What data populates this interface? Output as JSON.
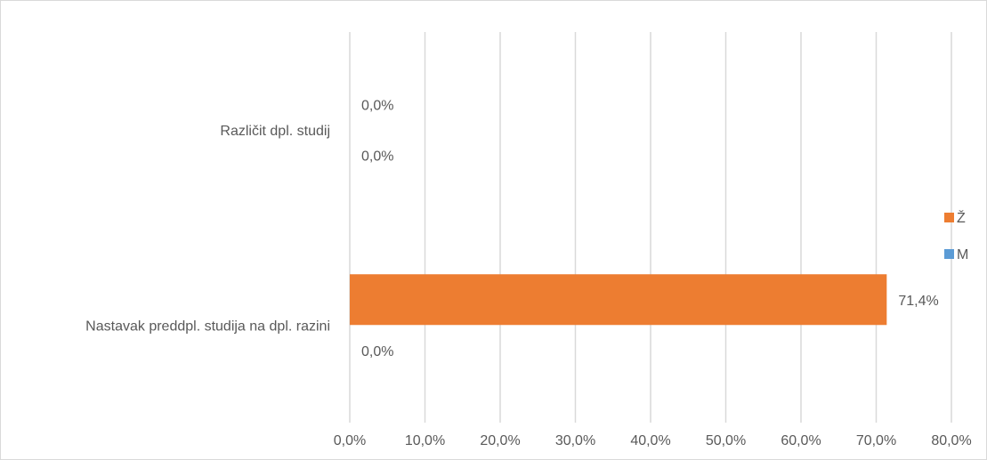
{
  "chart_data": {
    "type": "bar",
    "orientation": "horizontal",
    "categories": [
      "Nastavak preddpl. studija na dpl. razini",
      "Različit dpl. studij"
    ],
    "series": [
      {
        "name": "M",
        "values": [
          0.0,
          0.0
        ],
        "labels": [
          "0,0%",
          "0,0%"
        ]
      },
      {
        "name": "Ž",
        "values": [
          71.4,
          0.0
        ],
        "labels": [
          "71,4%",
          "0,0%"
        ]
      }
    ],
    "xlim": [
      0,
      80
    ],
    "xticks": [
      0,
      10,
      20,
      30,
      40,
      50,
      60,
      70,
      80
    ],
    "xtick_labels": [
      "0,0%",
      "10,0%",
      "20,0%",
      "30,0%",
      "40,0%",
      "50,0%",
      "60,0%",
      "70,0%",
      "80,0%"
    ],
    "grid": true,
    "legend_position": "right",
    "legend": [
      {
        "name": "Ž",
        "color": "#ed7d31"
      },
      {
        "name": "M",
        "color": "#5b9bd5"
      }
    ],
    "colors": {
      "M": "#5b9bd5",
      "Ž": "#ed7d31",
      "grid": "#d9d9d9",
      "text": "#595959"
    }
  }
}
